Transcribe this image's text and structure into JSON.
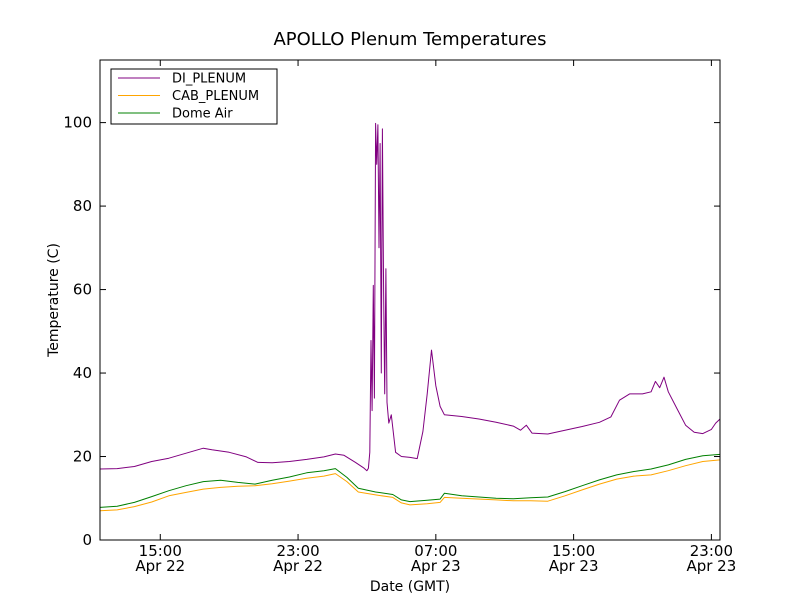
{
  "chart_data": {
    "type": "line",
    "title": "APOLLO Plenum Temperatures",
    "xlabel": "Date (GMT)",
    "ylabel": "Temperature (C)",
    "x_unit": "hours",
    "xlim": [
      "2012-04-22T11:30",
      "2012-04-23T23:30"
    ],
    "ylim": [
      0,
      115
    ],
    "yticks": [
      0,
      20,
      40,
      60,
      80,
      100
    ],
    "xticks": [
      {
        "x": "2012-04-22T15:00",
        "time": "15:00",
        "date": "Apr 22"
      },
      {
        "x": "2012-04-22T23:00",
        "time": "23:00",
        "date": "Apr 22"
      },
      {
        "x": "2012-04-23T07:00",
        "time": "07:00",
        "date": "Apr 23"
      },
      {
        "x": "2012-04-23T15:00",
        "time": "15:00",
        "date": "Apr 23"
      },
      {
        "x": "2012-04-23T23:00",
        "time": "23:00",
        "date": "Apr 23"
      }
    ],
    "legend_position": "top-left",
    "grid": false,
    "series": [
      {
        "name": "DI_PLENUM",
        "color": "#800080",
        "points": [
          [
            "2012-04-22T11:30",
            17.0
          ],
          [
            "2012-04-22T12:30",
            17.1
          ],
          [
            "2012-04-22T13:30",
            17.6
          ],
          [
            "2012-04-22T14:30",
            18.8
          ],
          [
            "2012-04-22T15:30",
            19.6
          ],
          [
            "2012-04-22T16:30",
            20.8
          ],
          [
            "2012-04-22T17:30",
            22.0
          ],
          [
            "2012-04-22T18:00",
            21.6
          ],
          [
            "2012-04-22T19:00",
            21.0
          ],
          [
            "2012-04-22T20:00",
            19.9
          ],
          [
            "2012-04-22T20:40",
            18.6
          ],
          [
            "2012-04-22T21:30",
            18.5
          ],
          [
            "2012-04-22T22:30",
            18.8
          ],
          [
            "2012-04-22T23:30",
            19.3
          ],
          [
            "2012-04-23T00:30",
            19.9
          ],
          [
            "2012-04-23T01:10",
            20.6
          ],
          [
            "2012-04-23T01:40",
            20.3
          ],
          [
            "2012-04-23T02:20",
            18.6
          ],
          [
            "2012-04-23T02:50",
            17.2
          ],
          [
            "2012-04-23T03:00",
            16.6
          ],
          [
            "2012-04-23T03:05",
            17.2
          ],
          [
            "2012-04-23T03:10",
            21.0
          ],
          [
            "2012-04-23T03:14",
            47.8
          ],
          [
            "2012-04-23T03:18",
            31.0
          ],
          [
            "2012-04-23T03:22",
            61.0
          ],
          [
            "2012-04-23T03:26",
            34.0
          ],
          [
            "2012-04-23T03:30",
            99.8
          ],
          [
            "2012-04-23T03:34",
            90.0
          ],
          [
            "2012-04-23T03:38",
            99.5
          ],
          [
            "2012-04-23T03:42",
            70.0
          ],
          [
            "2012-04-23T03:46",
            95.0
          ],
          [
            "2012-04-23T03:50",
            40.0
          ],
          [
            "2012-04-23T03:54",
            98.5
          ],
          [
            "2012-04-23T03:58",
            60.0
          ],
          [
            "2012-04-23T04:02",
            35.0
          ],
          [
            "2012-04-23T04:06",
            65.0
          ],
          [
            "2012-04-23T04:10",
            33.0
          ],
          [
            "2012-04-23T04:16",
            28.0
          ],
          [
            "2012-04-23T04:25",
            30.0
          ],
          [
            "2012-04-23T04:40",
            21.0
          ],
          [
            "2012-04-23T05:00",
            20.0
          ],
          [
            "2012-04-23T05:30",
            19.8
          ],
          [
            "2012-04-23T05:55",
            19.5
          ],
          [
            "2012-04-23T06:15",
            26.0
          ],
          [
            "2012-04-23T06:30",
            35.0
          ],
          [
            "2012-04-23T06:45",
            45.5
          ],
          [
            "2012-04-23T07:00",
            37.0
          ],
          [
            "2012-04-23T07:15",
            32.0
          ],
          [
            "2012-04-23T07:30",
            30.0
          ],
          [
            "2012-04-23T08:30",
            29.6
          ],
          [
            "2012-04-23T09:30",
            29.0
          ],
          [
            "2012-04-23T10:30",
            28.2
          ],
          [
            "2012-04-23T11:30",
            27.3
          ],
          [
            "2012-04-23T11:55",
            26.3
          ],
          [
            "2012-04-23T12:15",
            27.5
          ],
          [
            "2012-04-23T12:35",
            25.6
          ],
          [
            "2012-04-23T13:30",
            25.4
          ],
          [
            "2012-04-23T14:30",
            26.3
          ],
          [
            "2012-04-23T15:30",
            27.2
          ],
          [
            "2012-04-23T16:30",
            28.2
          ],
          [
            "2012-04-23T17:10",
            29.5
          ],
          [
            "2012-04-23T17:40",
            33.5
          ],
          [
            "2012-04-23T18:15",
            35.0
          ],
          [
            "2012-04-23T19:00",
            35.0
          ],
          [
            "2012-04-23T19:30",
            35.5
          ],
          [
            "2012-04-23T19:45",
            38.0
          ],
          [
            "2012-04-23T20:00",
            36.5
          ],
          [
            "2012-04-23T20:15",
            39.0
          ],
          [
            "2012-04-23T20:30",
            35.5
          ],
          [
            "2012-04-23T21:00",
            31.5
          ],
          [
            "2012-04-23T21:30",
            27.5
          ],
          [
            "2012-04-23T22:00",
            25.8
          ],
          [
            "2012-04-23T22:30",
            25.5
          ],
          [
            "2012-04-23T23:00",
            26.5
          ],
          [
            "2012-04-23T23:15",
            28.0
          ],
          [
            "2012-04-23T23:30",
            29.0
          ]
        ]
      },
      {
        "name": "CAB_PLENUM",
        "color": "#FFA500",
        "points": [
          [
            "2012-04-22T11:30",
            7.0
          ],
          [
            "2012-04-22T12:30",
            7.2
          ],
          [
            "2012-04-22T13:30",
            8.0
          ],
          [
            "2012-04-22T14:30",
            9.1
          ],
          [
            "2012-04-22T15:30",
            10.6
          ],
          [
            "2012-04-22T16:30",
            11.4
          ],
          [
            "2012-04-22T17:30",
            12.2
          ],
          [
            "2012-04-22T18:30",
            12.6
          ],
          [
            "2012-04-22T19:30",
            12.9
          ],
          [
            "2012-04-22T20:30",
            13.0
          ],
          [
            "2012-04-22T21:30",
            13.5
          ],
          [
            "2012-04-22T22:30",
            14.1
          ],
          [
            "2012-04-22T23:30",
            14.8
          ],
          [
            "2012-04-23T00:30",
            15.3
          ],
          [
            "2012-04-23T01:10",
            15.9
          ],
          [
            "2012-04-23T01:50",
            14.0
          ],
          [
            "2012-04-23T02:30",
            11.5
          ],
          [
            "2012-04-23T03:30",
            10.8
          ],
          [
            "2012-04-23T04:30",
            10.2
          ],
          [
            "2012-04-23T05:00",
            8.9
          ],
          [
            "2012-04-23T05:30",
            8.4
          ],
          [
            "2012-04-23T06:30",
            8.7
          ],
          [
            "2012-04-23T07:15",
            9.0
          ],
          [
            "2012-04-23T07:30",
            10.2
          ],
          [
            "2012-04-23T08:30",
            10.0
          ],
          [
            "2012-04-23T10:30",
            9.6
          ],
          [
            "2012-04-23T11:30",
            9.4
          ],
          [
            "2012-04-23T12:30",
            9.4
          ],
          [
            "2012-04-23T13:30",
            9.3
          ],
          [
            "2012-04-23T14:30",
            10.6
          ],
          [
            "2012-04-23T15:30",
            12.0
          ],
          [
            "2012-04-23T16:30",
            13.4
          ],
          [
            "2012-04-23T17:30",
            14.6
          ],
          [
            "2012-04-23T18:30",
            15.3
          ],
          [
            "2012-04-23T19:30",
            15.6
          ],
          [
            "2012-04-23T20:30",
            16.6
          ],
          [
            "2012-04-23T21:30",
            17.8
          ],
          [
            "2012-04-23T22:30",
            18.8
          ],
          [
            "2012-04-23T23:30",
            19.2
          ]
        ]
      },
      {
        "name": "Dome Air",
        "color": "#008000",
        "points": [
          [
            "2012-04-22T11:30",
            7.8
          ],
          [
            "2012-04-22T12:30",
            8.1
          ],
          [
            "2012-04-22T13:30",
            9.0
          ],
          [
            "2012-04-22T14:30",
            10.4
          ],
          [
            "2012-04-22T15:30",
            11.8
          ],
          [
            "2012-04-22T16:30",
            13.0
          ],
          [
            "2012-04-22T17:30",
            14.0
          ],
          [
            "2012-04-22T18:30",
            14.3
          ],
          [
            "2012-04-22T19:30",
            13.8
          ],
          [
            "2012-04-22T20:30",
            13.4
          ],
          [
            "2012-04-22T21:30",
            14.3
          ],
          [
            "2012-04-22T22:30",
            15.1
          ],
          [
            "2012-04-22T23:30",
            16.1
          ],
          [
            "2012-04-23T00:30",
            16.6
          ],
          [
            "2012-04-23T01:10",
            17.1
          ],
          [
            "2012-04-23T01:50",
            15.0
          ],
          [
            "2012-04-23T02:30",
            12.4
          ],
          [
            "2012-04-23T03:30",
            11.5
          ],
          [
            "2012-04-23T04:30",
            10.9
          ],
          [
            "2012-04-23T05:00",
            9.6
          ],
          [
            "2012-04-23T05:30",
            9.2
          ],
          [
            "2012-04-23T06:30",
            9.5
          ],
          [
            "2012-04-23T07:15",
            9.8
          ],
          [
            "2012-04-23T07:30",
            11.2
          ],
          [
            "2012-04-23T08:30",
            10.6
          ],
          [
            "2012-04-23T10:30",
            10.0
          ],
          [
            "2012-04-23T11:30",
            9.9
          ],
          [
            "2012-04-23T12:30",
            10.1
          ],
          [
            "2012-04-23T13:30",
            10.3
          ],
          [
            "2012-04-23T14:30",
            11.6
          ],
          [
            "2012-04-23T15:30",
            13.0
          ],
          [
            "2012-04-23T16:30",
            14.4
          ],
          [
            "2012-04-23T17:30",
            15.6
          ],
          [
            "2012-04-23T18:30",
            16.4
          ],
          [
            "2012-04-23T19:30",
            17.0
          ],
          [
            "2012-04-23T20:30",
            18.0
          ],
          [
            "2012-04-23T21:30",
            19.3
          ],
          [
            "2012-04-23T22:30",
            20.2
          ],
          [
            "2012-04-23T23:30",
            20.5
          ]
        ]
      }
    ]
  }
}
